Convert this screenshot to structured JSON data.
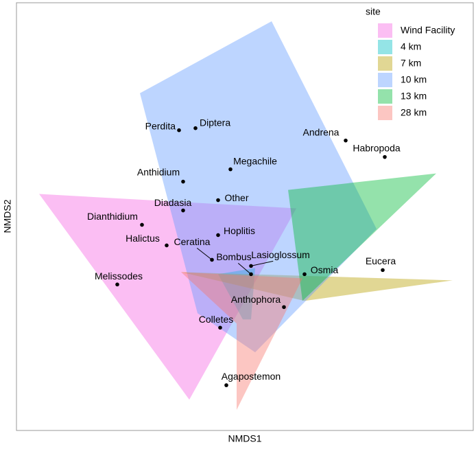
{
  "chart_data": {
    "type": "scatter",
    "xlabel": "NMDS1",
    "ylabel": "NMDS2",
    "xlim": [
      -1.11,
      1.11
    ],
    "ylim": [
      -1.04,
      1.04
    ],
    "labels": [
      "Perdita",
      "Diptera",
      "Andrena",
      "Habropoda",
      "Megachile",
      "Anthidium",
      "Other",
      "Diadasia",
      "Dianthidium",
      "Hoplitis",
      "Halictus",
      "Ceratina",
      "Bombus",
      "Lasioglossum",
      "Osmia",
      "Eucera",
      "Melissodes",
      "Anthophora",
      "Colletes",
      "Agapostemon"
    ],
    "x": [
      -0.32,
      -0.24,
      0.49,
      0.68,
      -0.07,
      -0.3,
      -0.13,
      -0.3,
      -0.5,
      -0.13,
      -0.38,
      -0.16,
      0.03,
      0.03,
      0.29,
      0.67,
      -0.62,
      0.19,
      -0.12,
      -0.09
    ],
    "y": [
      0.42,
      0.43,
      0.37,
      0.29,
      0.23,
      0.17,
      0.08,
      0.03,
      -0.04,
      -0.09,
      -0.14,
      -0.21,
      -0.28,
      -0.24,
      -0.28,
      -0.26,
      -0.33,
      -0.44,
      -0.54,
      -0.82
    ],
    "point_color": "#000000",
    "legend_title": "site",
    "legend_position": "top-right",
    "series": [
      {
        "name": "Wind Facility",
        "color": "#F564E3",
        "x": [
          -1.0,
          0.25,
          -0.27
        ],
        "y": [
          0.11,
          0.04,
          -0.89
        ]
      },
      {
        "name": "4 km",
        "color": "#00BFC4",
        "x": [
          -0.13,
          0.05,
          0.03,
          -0.01
        ],
        "y": [
          -0.28,
          -0.25,
          -0.5,
          -0.5
        ]
      },
      {
        "name": "7 km",
        "color": "#B79F00",
        "x": [
          -0.31,
          1.01,
          0.29
        ],
        "y": [
          -0.27,
          -0.31,
          -0.41
        ]
      },
      {
        "name": "10 km",
        "color": "#619CFF",
        "x": [
          -0.51,
          0.13,
          0.64,
          0.05,
          -0.23
        ],
        "y": [
          0.6,
          0.95,
          -0.06,
          -0.66,
          -0.47
        ]
      },
      {
        "name": "13 km",
        "color": "#00BA38",
        "x": [
          0.21,
          0.93,
          0.28
        ],
        "y": [
          0.13,
          0.21,
          -0.41
        ]
      },
      {
        "name": "28 km",
        "color": "#F8766D",
        "x": [
          -0.31,
          0.28,
          -0.04,
          -0.04
        ],
        "y": [
          -0.27,
          -0.3,
          -0.94,
          -0.52
        ]
      }
    ]
  }
}
